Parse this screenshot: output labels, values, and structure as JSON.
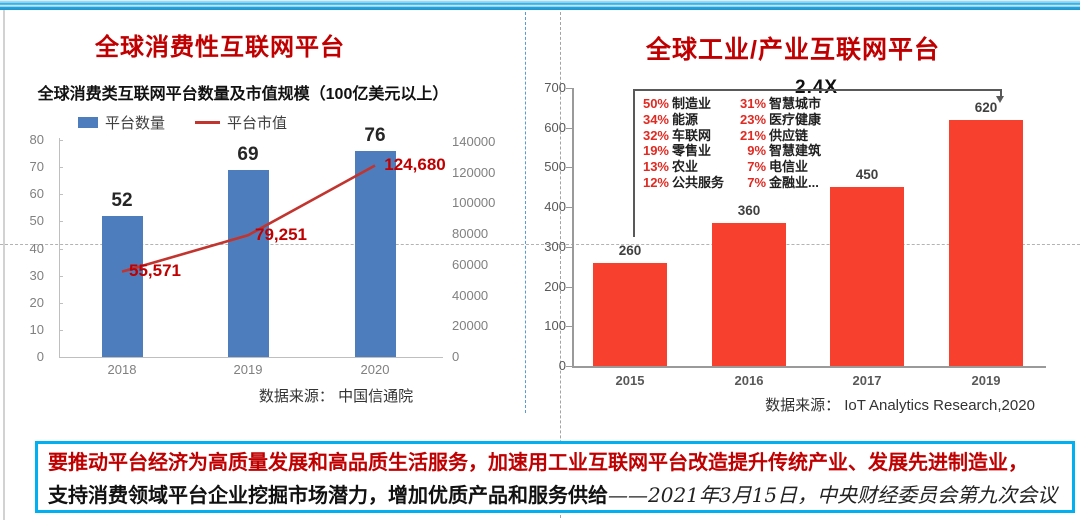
{
  "left_chart": {
    "title": "全球消费性互联网平台",
    "subtitle": "全球消费类互联网平台数量及市值规模（100亿美元以上）",
    "legend": [
      {
        "label": "平台数量",
        "type": "bar",
        "color": "#4e7dbd"
      },
      {
        "label": "平台市值",
        "type": "line",
        "color": "#c2342e"
      }
    ],
    "source": "数据来源： 中国信通院"
  },
  "right_chart": {
    "title": "全球工业/产业互联网平台",
    "source": "数据来源： IoT Analytics Research,2020"
  },
  "quote": {
    "line1": "要推动平台经济为高质量发展和高品质生活服务，加速用工业互联网平台改造提升传统产业、发展先进制造业，",
    "line2_bold": "支持消费领域平台企业挖掘市场潜力，增加优质产品和服务供给",
    "line2_attribution": "——2021年3月15日，中央财经委员会第九次会议"
  },
  "chart_data": [
    {
      "type": "bar",
      "title": "全球消费类互联网平台数量及市值规模（100亿美元以上）",
      "categories": [
        "2018",
        "2019",
        "2020"
      ],
      "series": [
        {
          "name": "平台数量",
          "type": "bar",
          "axis": "left",
          "color": "#4e7dbd",
          "values": [
            52,
            69,
            76
          ]
        },
        {
          "name": "平台市值",
          "type": "line",
          "axis": "right",
          "color": "#c2342e",
          "values": [
            55571,
            79251,
            124680
          ],
          "labels": [
            "55,571",
            "79,251",
            "124,680"
          ],
          "label_color": "#c00000"
        }
      ],
      "left_axis": {
        "min": 0,
        "max": 80,
        "step": 10
      },
      "right_axis": {
        "min": 0,
        "max": 140000,
        "step": 20000
      },
      "grid": false,
      "legend_position": "top",
      "source": "数据来源： 中国信通院"
    },
    {
      "type": "bar",
      "title": "全球工业/产业互联网平台",
      "categories": [
        "2015",
        "2016",
        "2017",
        "2019"
      ],
      "values": [
        260,
        360,
        450,
        620
      ],
      "bar_color": "#f8402e",
      "yaxis": {
        "min": 0,
        "max": 700,
        "step": 100
      },
      "grid": false,
      "annotation": {
        "label": "2.4X",
        "from_category": "2015",
        "to_category": "2019"
      },
      "breakdown": {
        "col1": [
          [
            "50%",
            "制造业"
          ],
          [
            "34%",
            "能源"
          ],
          [
            "32%",
            "车联网"
          ],
          [
            "19%",
            "零售业"
          ],
          [
            "13%",
            "农业"
          ],
          [
            "12%",
            "公共服务"
          ]
        ],
        "col2": [
          [
            "31%",
            "智慧城市"
          ],
          [
            "23%",
            "医疗健康"
          ],
          [
            "21%",
            "供应链"
          ],
          [
            "9%",
            "智慧建筑"
          ],
          [
            "7%",
            "电信业"
          ],
          [
            "7%",
            "金融业..."
          ]
        ]
      },
      "source": "数据来源： IoT Analytics Research,2020"
    }
  ]
}
